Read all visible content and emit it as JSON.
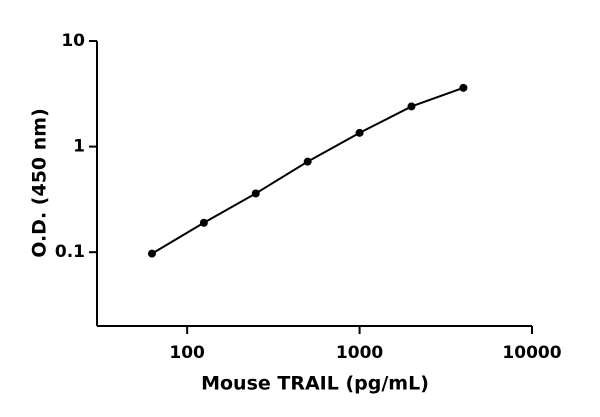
{
  "chart_data": {
    "type": "line",
    "x_label": "Mouse TRAIL (pg/mL)",
    "y_label": "O.D. (450 nm)",
    "x": [
      62.5,
      125,
      250,
      500,
      1000,
      2000,
      4000
    ],
    "values": [
      0.097,
      0.19,
      0.36,
      0.72,
      1.35,
      2.4,
      3.6
    ],
    "color": "#000000",
    "markers": true,
    "xscale": "log",
    "yscale": "log",
    "xlim": [
      30,
      10000
    ],
    "xticks": [
      100,
      1000,
      10000
    ],
    "ylim": [
      0.02,
      10
    ],
    "yticks": [
      0.1,
      1,
      10
    ]
  }
}
